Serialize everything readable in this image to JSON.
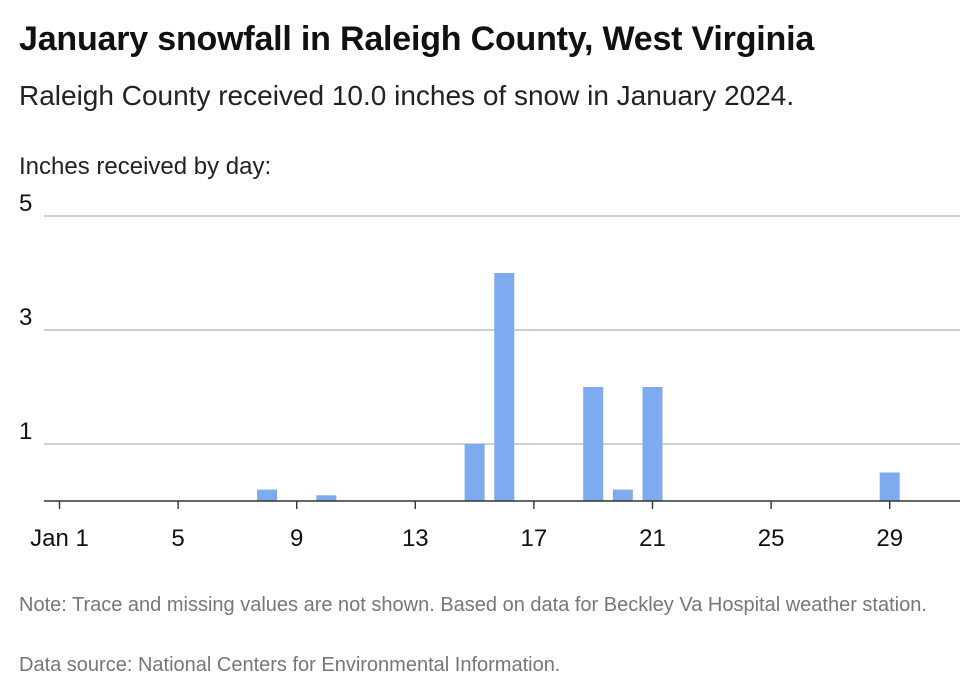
{
  "header": {
    "title": "January snowfall in Raleigh County, West Virginia",
    "subtitle": "Raleigh County received 10.0 inches of snow in January 2024.",
    "axis_caption": "Inches received by day:"
  },
  "footer": {
    "note": "Note: Trace and missing values are not shown. Based on data for Beckley Va Hospital weather station.",
    "source": "Data source: National Centers for Environmental Information."
  },
  "colors": {
    "bar": "#7eabef",
    "grid": "#b5b5b5",
    "axis": "#333333"
  },
  "chart_data": {
    "type": "bar",
    "title": "January snowfall in Raleigh County, West Virginia",
    "ylabel": "Inches received by day:",
    "xlabel": "",
    "ylim": [
      0,
      5
    ],
    "yticks": [
      1,
      3,
      5
    ],
    "x_range": [
      1,
      31
    ],
    "xtick_labels": [
      {
        "day": 1,
        "label": "Jan 1"
      },
      {
        "day": 5,
        "label": "5"
      },
      {
        "day": 9,
        "label": "9"
      },
      {
        "day": 13,
        "label": "13"
      },
      {
        "day": 17,
        "label": "17"
      },
      {
        "day": 21,
        "label": "21"
      },
      {
        "day": 25,
        "label": "25"
      },
      {
        "day": 29,
        "label": "29"
      }
    ],
    "grid": true,
    "points": [
      {
        "day": 8,
        "value": 0.2
      },
      {
        "day": 10,
        "value": 0.1
      },
      {
        "day": 15,
        "value": 1.0
      },
      {
        "day": 16,
        "value": 4.0
      },
      {
        "day": 19,
        "value": 2.0
      },
      {
        "day": 20,
        "value": 0.2
      },
      {
        "day": 21,
        "value": 2.0
      },
      {
        "day": 29,
        "value": 0.5
      }
    ]
  }
}
